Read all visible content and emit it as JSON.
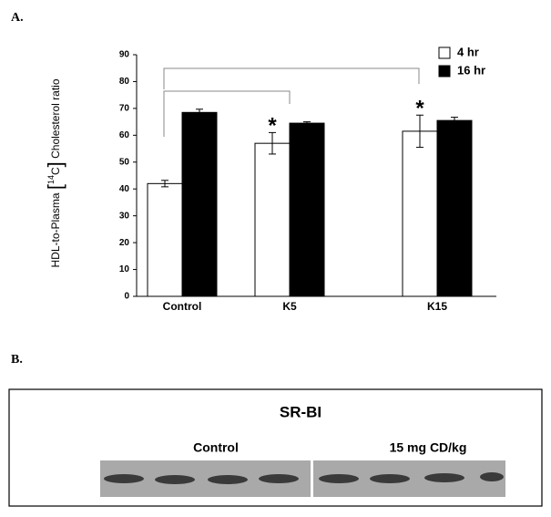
{
  "panel_a_label": "A.",
  "chart_data": {
    "type": "bar",
    "y_label_parts": [
      "HDL-to-Plasma ",
      "[",
      "14",
      "C",
      "]",
      " Cholesterol ratio"
    ],
    "categories": [
      "Control",
      "K5",
      "K15"
    ],
    "series": [
      {
        "name": "4 hr",
        "color": "#ffffff",
        "values": [
          42,
          57,
          61.5
        ],
        "errors": [
          1.2,
          4,
          6
        ]
      },
      {
        "name": "16 hr",
        "color": "#000000",
        "values": [
          68.5,
          64.5,
          65.5
        ],
        "errors": [
          1.2,
          0.5,
          1.2
        ]
      }
    ],
    "annotations": [
      "*",
      "*"
    ],
    "ylim": [
      0,
      90
    ],
    "yticks": [
      0,
      10,
      20,
      30,
      40,
      50,
      60,
      70,
      80,
      90
    ],
    "grid": false,
    "legend": "top-right"
  },
  "panel_b": {
    "label": "B.",
    "title": "SR-BI",
    "groups": [
      "Control",
      "15 mg CD/kg"
    ]
  }
}
